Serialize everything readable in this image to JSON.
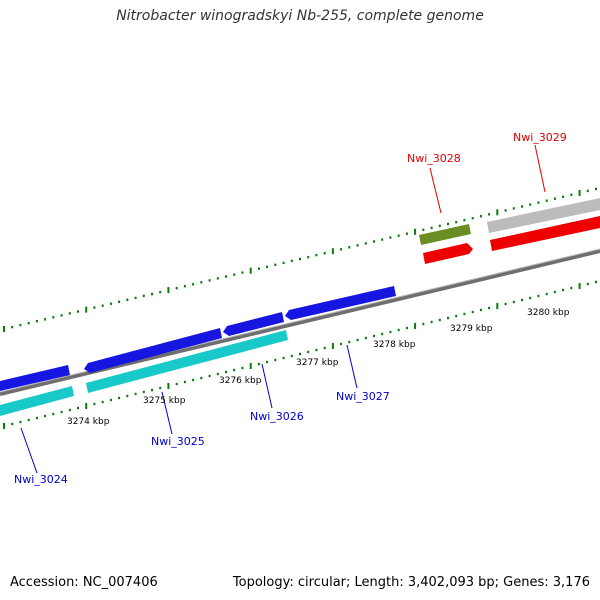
{
  "title": "Nitrobacter winogradskyi Nb-255, complete genome",
  "footer": {
    "accession": "Accession: NC_007406",
    "summary": "Topology: circular; Length: 3,402,093 bp; Genes: 3,176"
  },
  "colors": {
    "backbone": "#888888",
    "ticks": "#0b7a0b",
    "tick_text": "#000000",
    "forward_label": "#e00000",
    "reverse_label": "#0000cc",
    "blue_gene": "#1616e0",
    "cyan_gene": "#19c8c8",
    "red_gene": "#ee0000",
    "grey_gene": "#bcbcbc",
    "olive_gene": "#6a8e23"
  },
  "scale": {
    "ticks": [
      {
        "label": "3274 kbp"
      },
      {
        "label": "3275 kbp"
      },
      {
        "label": "3276 kbp"
      },
      {
        "label": "3277 kbp"
      },
      {
        "label": "3278 kbp"
      },
      {
        "label": "3279 kbp"
      },
      {
        "label": "3280 kbp"
      }
    ]
  },
  "genes": [
    {
      "label": "Nwi_3024",
      "strand": "reverse"
    },
    {
      "label": "Nwi_3025",
      "strand": "reverse"
    },
    {
      "label": "Nwi_3026",
      "strand": "reverse"
    },
    {
      "label": "Nwi_3027",
      "strand": "reverse"
    },
    {
      "label": "Nwi_3028",
      "strand": "forward"
    },
    {
      "label": "Nwi_3029",
      "strand": "forward"
    }
  ]
}
